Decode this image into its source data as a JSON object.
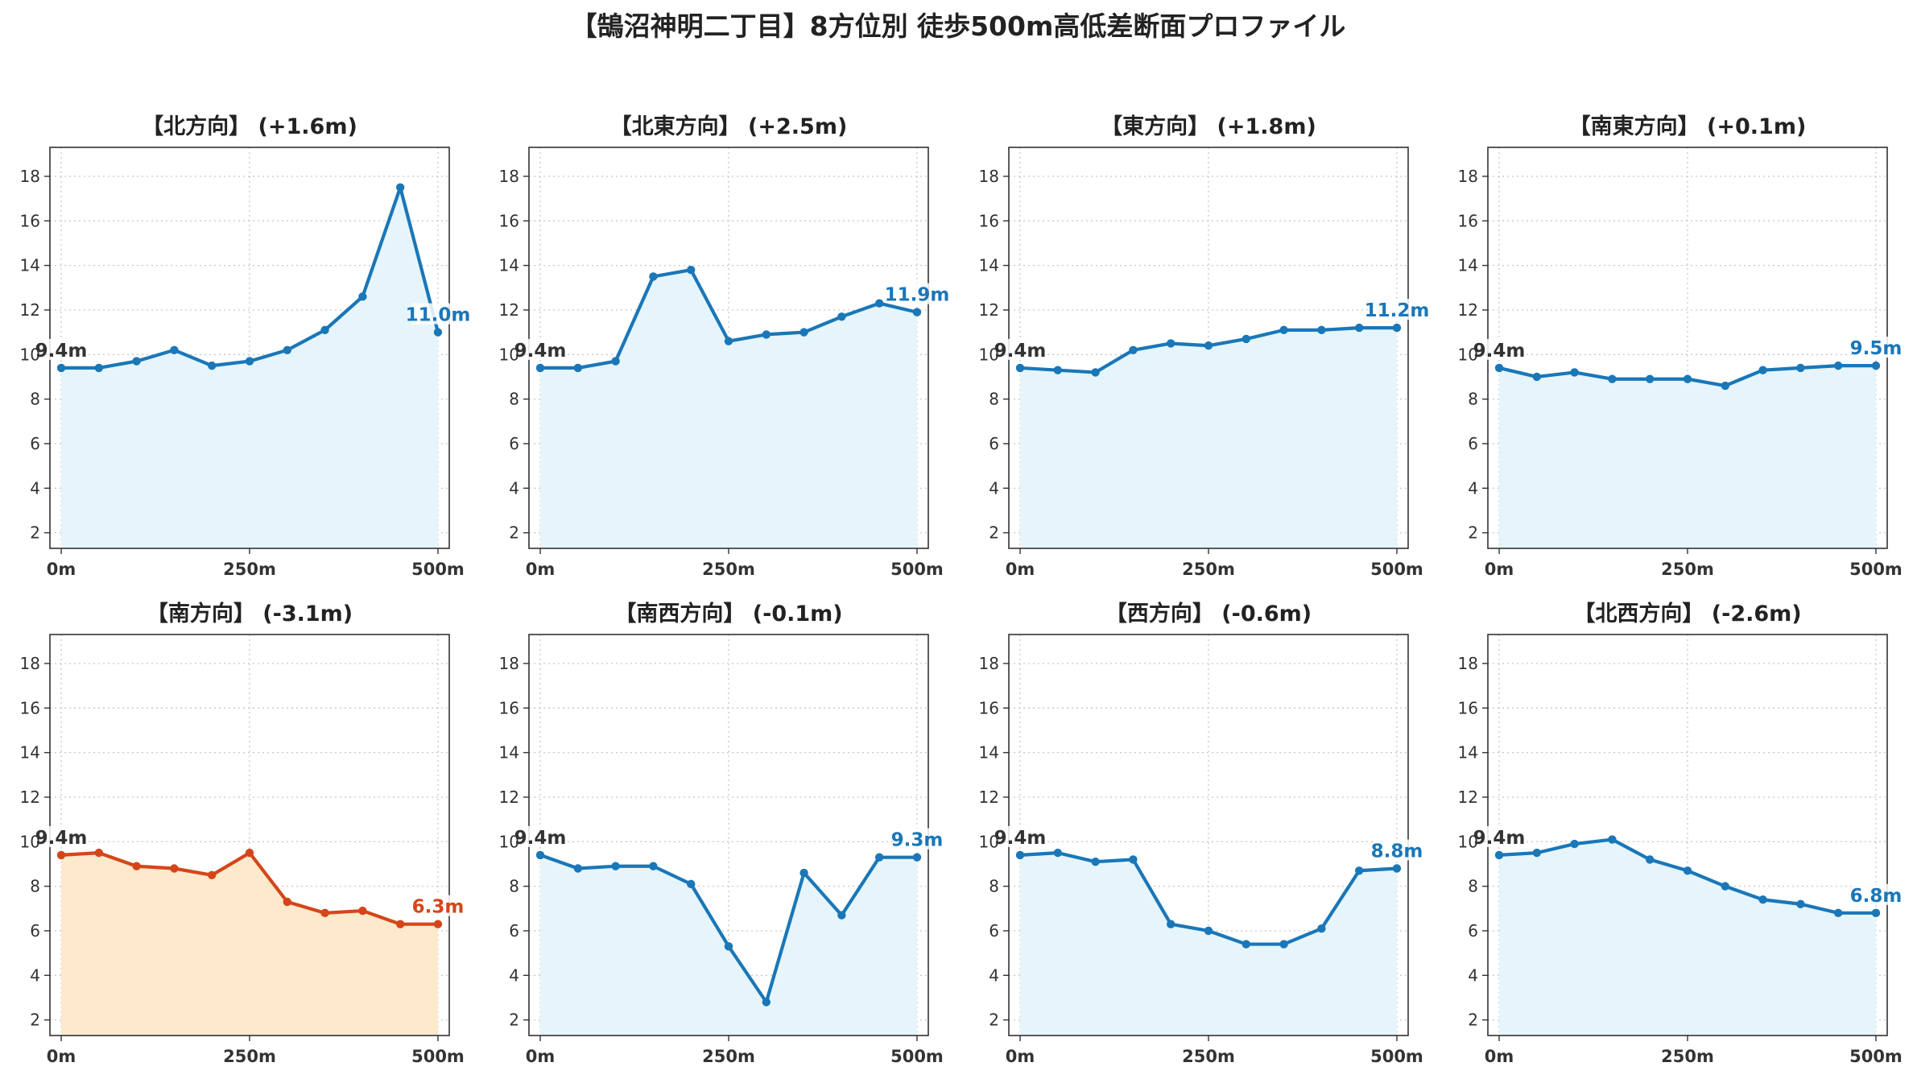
{
  "title": "【鵠沼神明二丁目】8方位別 徒歩500m高低差断面プロファイル",
  "colors": {
    "up_line": "#1a77b8",
    "up_fill": "#e6f5fb",
    "down_line": "#d4461a",
    "down_fill": "#fde9cb",
    "grid": "#c8c8c8",
    "axis": "#333333"
  },
  "chart_data": [
    {
      "type": "line",
      "title": "【北方向】 (+1.6m)",
      "x": [
        0,
        50,
        100,
        150,
        200,
        250,
        300,
        350,
        400,
        450,
        500
      ],
      "y": [
        9.4,
        9.4,
        9.7,
        10.2,
        9.5,
        9.7,
        10.2,
        11.1,
        12.6,
        17.5,
        11.0
      ],
      "start_label": "9.4m",
      "end_label": "11.0m",
      "highlight": "up",
      "xticks": [
        "0m",
        "250m",
        "500m"
      ],
      "ylim": [
        1.3,
        19.3
      ],
      "yticks": [
        2,
        4,
        6,
        8,
        10,
        12,
        14,
        16,
        18
      ],
      "xlim": [
        -15,
        515
      ],
      "grid": true
    },
    {
      "type": "line",
      "title": "【北東方向】 (+2.5m)",
      "x": [
        0,
        50,
        100,
        150,
        200,
        250,
        300,
        350,
        400,
        450,
        500
      ],
      "y": [
        9.4,
        9.4,
        9.7,
        13.5,
        13.8,
        10.6,
        10.9,
        11.0,
        11.7,
        12.3,
        11.9
      ],
      "start_label": "9.4m",
      "end_label": "11.9m",
      "highlight": "up",
      "xticks": [
        "0m",
        "250m",
        "500m"
      ],
      "ylim": [
        1.3,
        19.3
      ],
      "yticks": [
        2,
        4,
        6,
        8,
        10,
        12,
        14,
        16,
        18
      ],
      "xlim": [
        -15,
        515
      ],
      "grid": true
    },
    {
      "type": "line",
      "title": "【東方向】 (+1.8m)",
      "x": [
        0,
        50,
        100,
        150,
        200,
        250,
        300,
        350,
        400,
        450,
        500
      ],
      "y": [
        9.4,
        9.3,
        9.2,
        10.2,
        10.5,
        10.4,
        10.7,
        11.1,
        11.1,
        11.2,
        11.2
      ],
      "start_label": "9.4m",
      "end_label": "11.2m",
      "highlight": "up",
      "xticks": [
        "0m",
        "250m",
        "500m"
      ],
      "ylim": [
        1.3,
        19.3
      ],
      "yticks": [
        2,
        4,
        6,
        8,
        10,
        12,
        14,
        16,
        18
      ],
      "xlim": [
        -15,
        515
      ],
      "grid": true
    },
    {
      "type": "line",
      "title": "【南東方向】 (+0.1m)",
      "x": [
        0,
        50,
        100,
        150,
        200,
        250,
        300,
        350,
        400,
        450,
        500
      ],
      "y": [
        9.4,
        9.0,
        9.2,
        8.9,
        8.9,
        8.9,
        8.6,
        9.3,
        9.4,
        9.5,
        9.5
      ],
      "start_label": "9.4m",
      "end_label": "9.5m",
      "highlight": "up",
      "xticks": [
        "0m",
        "250m",
        "500m"
      ],
      "ylim": [
        1.3,
        19.3
      ],
      "yticks": [
        2,
        4,
        6,
        8,
        10,
        12,
        14,
        16,
        18
      ],
      "xlim": [
        -15,
        515
      ],
      "grid": true
    },
    {
      "type": "line",
      "title": "【南方向】 (-3.1m)",
      "x": [
        0,
        50,
        100,
        150,
        200,
        250,
        300,
        350,
        400,
        450,
        500
      ],
      "y": [
        9.4,
        9.5,
        8.9,
        8.8,
        8.5,
        9.5,
        7.3,
        6.8,
        6.9,
        6.3,
        6.3
      ],
      "start_label": "9.4m",
      "end_label": "6.3m",
      "highlight": "down",
      "xticks": [
        "0m",
        "250m",
        "500m"
      ],
      "ylim": [
        1.3,
        19.3
      ],
      "yticks": [
        2,
        4,
        6,
        8,
        10,
        12,
        14,
        16,
        18
      ],
      "xlim": [
        -15,
        515
      ],
      "grid": true
    },
    {
      "type": "line",
      "title": "【南西方向】 (-0.1m)",
      "x": [
        0,
        50,
        100,
        150,
        200,
        250,
        300,
        350,
        400,
        450,
        500
      ],
      "y": [
        9.4,
        8.8,
        8.9,
        8.9,
        8.1,
        5.3,
        2.8,
        8.6,
        6.7,
        9.3,
        9.3
      ],
      "start_label": "9.4m",
      "end_label": "9.3m",
      "highlight": "up",
      "xticks": [
        "0m",
        "250m",
        "500m"
      ],
      "ylim": [
        1.3,
        19.3
      ],
      "yticks": [
        2,
        4,
        6,
        8,
        10,
        12,
        14,
        16,
        18
      ],
      "xlim": [
        -15,
        515
      ],
      "grid": true
    },
    {
      "type": "line",
      "title": "【西方向】 (-0.6m)",
      "x": [
        0,
        50,
        100,
        150,
        200,
        250,
        300,
        350,
        400,
        450,
        500
      ],
      "y": [
        9.4,
        9.5,
        9.1,
        9.2,
        6.3,
        6.0,
        5.4,
        5.4,
        6.1,
        8.7,
        8.8
      ],
      "start_label": "9.4m",
      "end_label": "8.8m",
      "highlight": "up",
      "xticks": [
        "0m",
        "250m",
        "500m"
      ],
      "ylim": [
        1.3,
        19.3
      ],
      "yticks": [
        2,
        4,
        6,
        8,
        10,
        12,
        14,
        16,
        18
      ],
      "xlim": [
        -15,
        515
      ],
      "grid": true
    },
    {
      "type": "line",
      "title": "【北西方向】 (-2.6m)",
      "x": [
        0,
        50,
        100,
        150,
        200,
        250,
        300,
        350,
        400,
        450,
        500
      ],
      "y": [
        9.4,
        9.5,
        9.9,
        10.1,
        9.2,
        8.7,
        8.0,
        7.4,
        7.2,
        6.8,
        6.8
      ],
      "start_label": "9.4m",
      "end_label": "6.8m",
      "highlight": "up",
      "xticks": [
        "0m",
        "250m",
        "500m"
      ],
      "ylim": [
        1.3,
        19.3
      ],
      "yticks": [
        2,
        4,
        6,
        8,
        10,
        12,
        14,
        16,
        18
      ],
      "xlim": [
        -15,
        515
      ],
      "grid": true
    }
  ]
}
